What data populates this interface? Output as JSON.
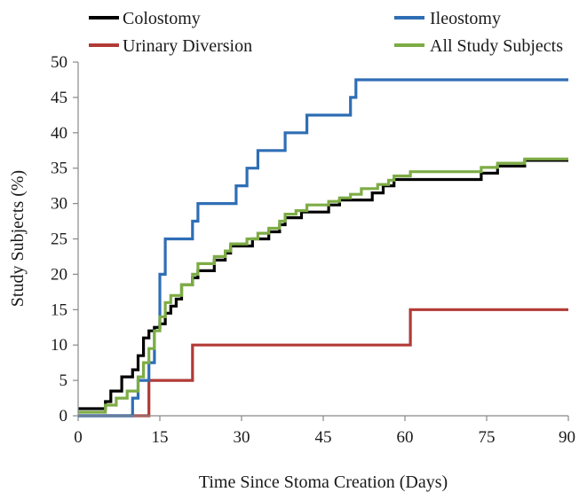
{
  "chart_data": {
    "type": "line",
    "step": true,
    "title": "",
    "xlabel": "Time Since Stoma Creation (Days)",
    "ylabel": "Study Subjects (%)",
    "xlim": [
      0,
      90
    ],
    "ylim": [
      0,
      50
    ],
    "xticks": [
      0,
      15,
      30,
      45,
      60,
      75,
      90
    ],
    "yticks": [
      0,
      5,
      10,
      15,
      20,
      25,
      30,
      35,
      40,
      45,
      50
    ],
    "grid": false,
    "legend_position": "top",
    "series": [
      {
        "name": "Colostomy",
        "color": "#000000",
        "points": [
          [
            0,
            1
          ],
          [
            5,
            1
          ],
          [
            5,
            2
          ],
          [
            6,
            2
          ],
          [
            6,
            3.5
          ],
          [
            8,
            3.5
          ],
          [
            8,
            5.5
          ],
          [
            10,
            5.5
          ],
          [
            10,
            6.5
          ],
          [
            11,
            6.5
          ],
          [
            11,
            8.5
          ],
          [
            12,
            8.5
          ],
          [
            12,
            11
          ],
          [
            13,
            11
          ],
          [
            13,
            12
          ],
          [
            14,
            12
          ],
          [
            14,
            12.5
          ],
          [
            15,
            12.5
          ],
          [
            15,
            13
          ],
          [
            16,
            13
          ],
          [
            16,
            14.5
          ],
          [
            17,
            14.5
          ],
          [
            17,
            15.5
          ],
          [
            18,
            15.5
          ],
          [
            18,
            16.5
          ],
          [
            19,
            16.5
          ],
          [
            19,
            18.5
          ],
          [
            21,
            18.5
          ],
          [
            21,
            19.5
          ],
          [
            22,
            19.5
          ],
          [
            22,
            20.5
          ],
          [
            25,
            20.5
          ],
          [
            25,
            22
          ],
          [
            27,
            22
          ],
          [
            27,
            23
          ],
          [
            28,
            23
          ],
          [
            28,
            24
          ],
          [
            32,
            24
          ],
          [
            32,
            25
          ],
          [
            35,
            25
          ],
          [
            35,
            26
          ],
          [
            37,
            26
          ],
          [
            37,
            27
          ],
          [
            38,
            27
          ],
          [
            38,
            28
          ],
          [
            41,
            28
          ],
          [
            41,
            28.8
          ],
          [
            46,
            28.8
          ],
          [
            46,
            29.8
          ],
          [
            48,
            29.8
          ],
          [
            48,
            30.5
          ],
          [
            54,
            30.5
          ],
          [
            54,
            31.5
          ],
          [
            56,
            31.5
          ],
          [
            56,
            32.5
          ],
          [
            58,
            32.5
          ],
          [
            58,
            33.4
          ],
          [
            74,
            33.4
          ],
          [
            74,
            34.3
          ],
          [
            77,
            34.3
          ],
          [
            77,
            35.3
          ],
          [
            82,
            35.3
          ],
          [
            82,
            36.1
          ],
          [
            90,
            36.1
          ]
        ]
      },
      {
        "name": "Ileostomy",
        "color": "#2f6eb5",
        "points": [
          [
            0,
            0
          ],
          [
            10,
            0
          ],
          [
            10,
            2.5
          ],
          [
            11,
            2.5
          ],
          [
            11,
            5
          ],
          [
            13,
            5
          ],
          [
            13,
            7.5
          ],
          [
            14,
            7.5
          ],
          [
            14,
            12.5
          ],
          [
            15,
            12.5
          ],
          [
            15,
            20
          ],
          [
            16,
            20
          ],
          [
            16,
            25
          ],
          [
            21,
            25
          ],
          [
            21,
            27.5
          ],
          [
            22,
            27.5
          ],
          [
            22,
            30
          ],
          [
            29,
            30
          ],
          [
            29,
            32.5
          ],
          [
            31,
            32.5
          ],
          [
            31,
            35
          ],
          [
            33,
            35
          ],
          [
            33,
            37.5
          ],
          [
            38,
            37.5
          ],
          [
            38,
            40
          ],
          [
            42,
            40
          ],
          [
            42,
            42.5
          ],
          [
            50,
            42.5
          ],
          [
            50,
            45
          ],
          [
            51,
            45
          ],
          [
            51,
            47.5
          ],
          [
            90,
            47.5
          ]
        ]
      },
      {
        "name": "Urinary Diversion",
        "color": "#b23a36",
        "points": [
          [
            0,
            0
          ],
          [
            13,
            0
          ],
          [
            13,
            5
          ],
          [
            21,
            5
          ],
          [
            21,
            10
          ],
          [
            61,
            10
          ],
          [
            61,
            15
          ],
          [
            90,
            15
          ]
        ]
      },
      {
        "name": "All Study Subjects",
        "color": "#7dac45",
        "points": [
          [
            0,
            0.5
          ],
          [
            5,
            0.5
          ],
          [
            5,
            1.5
          ],
          [
            7,
            1.5
          ],
          [
            7,
            2.5
          ],
          [
            9,
            2.5
          ],
          [
            9,
            3.5
          ],
          [
            11,
            3.5
          ],
          [
            11,
            5.5
          ],
          [
            12,
            5.5
          ],
          [
            12,
            7.5
          ],
          [
            13,
            7.5
          ],
          [
            13,
            9.5
          ],
          [
            14,
            9.5
          ],
          [
            14,
            12
          ],
          [
            15,
            12
          ],
          [
            15,
            14
          ],
          [
            16,
            14
          ],
          [
            16,
            16
          ],
          [
            17,
            16
          ],
          [
            17,
            17
          ],
          [
            19,
            17
          ],
          [
            19,
            18.5
          ],
          [
            21,
            18.5
          ],
          [
            21,
            20
          ],
          [
            22,
            20
          ],
          [
            22,
            21.5
          ],
          [
            25,
            21.5
          ],
          [
            25,
            22.5
          ],
          [
            27,
            22.5
          ],
          [
            27,
            23.3
          ],
          [
            28,
            23.3
          ],
          [
            28,
            24.3
          ],
          [
            31,
            24.3
          ],
          [
            31,
            25
          ],
          [
            33,
            25
          ],
          [
            33,
            25.8
          ],
          [
            35,
            25.8
          ],
          [
            35,
            26.5
          ],
          [
            37,
            26.5
          ],
          [
            37,
            27.5
          ],
          [
            38,
            27.5
          ],
          [
            38,
            28.5
          ],
          [
            40,
            28.5
          ],
          [
            40,
            29
          ],
          [
            42,
            29
          ],
          [
            42,
            29.8
          ],
          [
            46,
            29.8
          ],
          [
            46,
            30.3
          ],
          [
            48,
            30.3
          ],
          [
            48,
            30.8
          ],
          [
            50,
            30.8
          ],
          [
            50,
            31.3
          ],
          [
            52,
            31.3
          ],
          [
            52,
            32.1
          ],
          [
            55,
            32.1
          ],
          [
            55,
            32.7
          ],
          [
            57,
            32.7
          ],
          [
            57,
            33.3
          ],
          [
            58,
            33.3
          ],
          [
            58,
            33.9
          ],
          [
            61,
            33.9
          ],
          [
            61,
            34.5
          ],
          [
            74,
            34.5
          ],
          [
            74,
            35.1
          ],
          [
            77,
            35.1
          ],
          [
            77,
            35.7
          ],
          [
            82,
            35.7
          ],
          [
            82,
            36.3
          ],
          [
            90,
            36.3
          ]
        ]
      }
    ]
  }
}
